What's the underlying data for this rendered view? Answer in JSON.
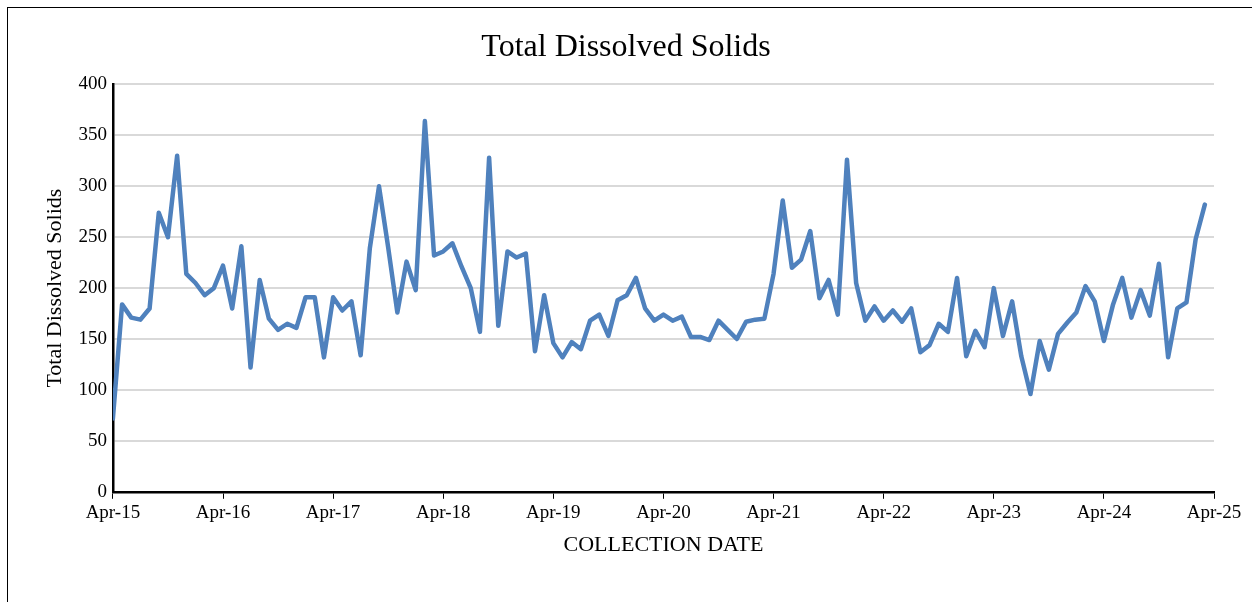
{
  "chart_data": {
    "type": "line",
    "title": "Total Dissolved Solids",
    "xlabel": "COLLECTION DATE",
    "ylabel": "Total Dissolved Solids",
    "x": [
      "2015-04",
      "2015-05",
      "2015-06",
      "2015-07",
      "2015-08",
      "2015-09",
      "2015-10",
      "2015-11",
      "2015-12",
      "2016-01",
      "2016-02",
      "2016-03",
      "2016-04",
      "2016-05",
      "2016-06",
      "2016-07",
      "2016-08",
      "2016-09",
      "2016-10",
      "2016-11",
      "2016-12",
      "2017-01",
      "2017-02",
      "2017-03",
      "2017-04",
      "2017-05",
      "2017-06",
      "2017-07",
      "2017-08",
      "2017-09",
      "2017-10",
      "2017-11",
      "2017-12",
      "2018-01",
      "2018-02",
      "2018-03",
      "2018-04",
      "2018-05",
      "2018-06",
      "2018-07",
      "2018-08",
      "2018-09",
      "2018-10",
      "2018-11",
      "2018-12",
      "2019-01",
      "2019-02",
      "2019-03",
      "2019-04",
      "2019-05",
      "2019-06",
      "2019-07",
      "2019-08",
      "2019-09",
      "2019-10",
      "2019-11",
      "2019-12",
      "2020-01",
      "2020-02",
      "2020-03",
      "2020-04",
      "2020-05",
      "2020-06",
      "2020-07",
      "2020-08",
      "2020-09",
      "2020-10",
      "2020-11",
      "2020-12",
      "2021-01",
      "2021-02",
      "2021-03",
      "2021-04",
      "2021-05",
      "2021-06",
      "2021-07",
      "2021-08",
      "2021-09",
      "2021-10",
      "2021-11",
      "2021-12",
      "2022-01",
      "2022-02",
      "2022-03",
      "2022-04",
      "2022-05",
      "2022-06",
      "2022-07",
      "2022-08",
      "2022-09",
      "2022-10",
      "2022-11",
      "2022-12",
      "2023-01",
      "2023-02",
      "2023-03",
      "2023-04",
      "2023-05",
      "2023-06",
      "2023-07",
      "2023-08",
      "2023-09",
      "2023-10",
      "2023-11",
      "2023-12",
      "2024-01",
      "2024-02",
      "2024-03",
      "2024-04",
      "2024-05",
      "2024-06",
      "2024-07",
      "2024-08",
      "2024-09",
      "2024-10",
      "2024-11",
      "2024-12",
      "2025-01",
      "2025-02",
      "2025-03"
    ],
    "series": [
      {
        "color": "#4f81bd",
        "values": [
          72,
          184,
          171,
          169,
          180,
          274,
          250,
          330,
          214,
          205,
          193,
          200,
          222,
          180,
          241,
          122,
          208,
          170,
          159,
          165,
          161,
          191,
          191,
          132,
          191,
          178,
          187,
          134,
          239,
          300,
          240,
          176,
          226,
          198,
          364,
          232,
          236,
          244,
          221,
          200,
          157,
          328,
          163,
          236,
          230,
          234,
          138,
          193,
          146,
          132,
          147,
          140,
          168,
          174,
          153,
          188,
          193,
          210,
          180,
          168,
          174,
          168,
          172,
          152,
          152,
          149,
          168,
          159,
          150,
          167,
          169,
          170,
          214,
          286,
          220,
          228,
          256,
          190,
          208,
          174,
          326,
          205,
          168,
          182,
          168,
          178,
          167,
          180,
          137,
          144,
          165,
          157,
          210,
          133,
          158,
          142,
          200,
          153,
          187,
          133,
          96,
          148,
          120,
          155,
          166,
          176,
          202,
          187,
          148,
          184,
          210,
          171,
          198,
          173,
          224,
          132,
          180,
          186,
          248,
          282
        ]
      }
    ],
    "xlim": [
      "2015-04",
      "2025-04"
    ],
    "xticks": [
      {
        "value": "2015-04",
        "label": "Apr-15"
      },
      {
        "value": "2016-04",
        "label": "Apr-16"
      },
      {
        "value": "2017-04",
        "label": "Apr-17"
      },
      {
        "value": "2018-04",
        "label": "Apr-18"
      },
      {
        "value": "2019-04",
        "label": "Apr-19"
      },
      {
        "value": "2020-04",
        "label": "Apr-20"
      },
      {
        "value": "2021-04",
        "label": "Apr-21"
      },
      {
        "value": "2022-04",
        "label": "Apr-22"
      },
      {
        "value": "2023-04",
        "label": "Apr-23"
      },
      {
        "value": "2024-04",
        "label": "Apr-24"
      },
      {
        "value": "2025-04",
        "label": "Apr-25"
      }
    ],
    "ylim": [
      0,
      400
    ],
    "yticks": [
      0,
      50,
      100,
      150,
      200,
      250,
      300,
      350,
      400
    ],
    "grid": "y",
    "legend": false,
    "marker": "none",
    "line_style": "solid"
  }
}
